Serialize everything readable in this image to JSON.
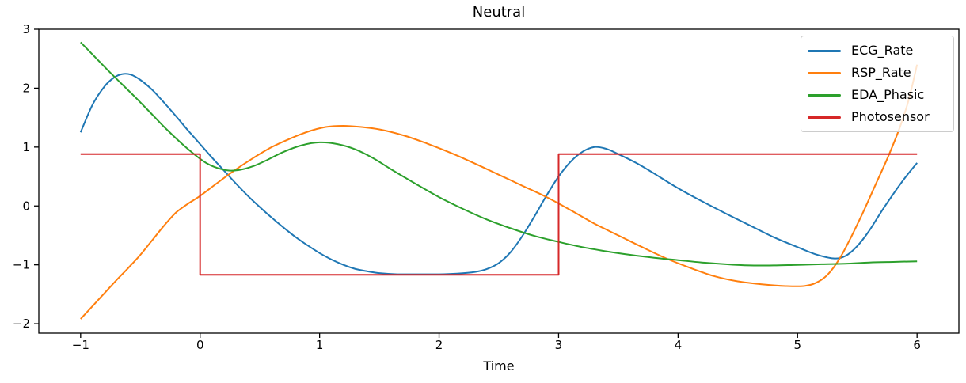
{
  "figure": {
    "title": "Neutral",
    "xlabel": "Time"
  },
  "chart_data": {
    "type": "line",
    "title": "Neutral",
    "xlabel": "Time",
    "ylabel": "",
    "xlim": [
      -1.35,
      6.35
    ],
    "ylim": [
      -2.16,
      3.0
    ],
    "x_ticks": [
      -1,
      0,
      1,
      2,
      3,
      4,
      5,
      6
    ],
    "x_tick_labels": [
      "−1",
      "0",
      "1",
      "2",
      "3",
      "4",
      "5",
      "6"
    ],
    "y_ticks": [
      -2,
      -1,
      0,
      1,
      2,
      3
    ],
    "y_tick_labels": [
      "−2",
      "−1",
      "0",
      "1",
      "2",
      "3"
    ],
    "grid": false,
    "legend_position": "upper right",
    "series": [
      {
        "name": "ECG_Rate",
        "color": "#1f77b4",
        "smooth": true,
        "points": [
          [
            -1.0,
            1.25
          ],
          [
            -0.9,
            1.72
          ],
          [
            -0.8,
            2.03
          ],
          [
            -0.72,
            2.18
          ],
          [
            -0.65,
            2.24
          ],
          [
            -0.58,
            2.23
          ],
          [
            -0.5,
            2.14
          ],
          [
            -0.4,
            1.97
          ],
          [
            -0.3,
            1.75
          ],
          [
            -0.2,
            1.52
          ],
          [
            -0.1,
            1.28
          ],
          [
            0.0,
            1.05
          ],
          [
            0.1,
            0.82
          ],
          [
            0.2,
            0.6
          ],
          [
            0.3,
            0.38
          ],
          [
            0.4,
            0.17
          ],
          [
            0.5,
            -0.02
          ],
          [
            0.6,
            -0.2
          ],
          [
            0.7,
            -0.37
          ],
          [
            0.8,
            -0.53
          ],
          [
            0.9,
            -0.67
          ],
          [
            1.0,
            -0.8
          ],
          [
            1.1,
            -0.91
          ],
          [
            1.2,
            -1.0
          ],
          [
            1.3,
            -1.07
          ],
          [
            1.4,
            -1.11
          ],
          [
            1.5,
            -1.14
          ],
          [
            1.65,
            -1.16
          ],
          [
            1.8,
            -1.16
          ],
          [
            2.0,
            -1.16
          ],
          [
            2.15,
            -1.15
          ],
          [
            2.3,
            -1.12
          ],
          [
            2.4,
            -1.07
          ],
          [
            2.5,
            -0.97
          ],
          [
            2.6,
            -0.78
          ],
          [
            2.7,
            -0.5
          ],
          [
            2.8,
            -0.17
          ],
          [
            2.9,
            0.18
          ],
          [
            3.0,
            0.5
          ],
          [
            3.1,
            0.75
          ],
          [
            3.2,
            0.92
          ],
          [
            3.3,
            1.0
          ],
          [
            3.4,
            0.97
          ],
          [
            3.5,
            0.88
          ],
          [
            3.65,
            0.73
          ],
          [
            3.8,
            0.55
          ],
          [
            4.0,
            0.3
          ],
          [
            4.2,
            0.08
          ],
          [
            4.4,
            -0.13
          ],
          [
            4.6,
            -0.33
          ],
          [
            4.8,
            -0.53
          ],
          [
            5.0,
            -0.7
          ],
          [
            5.15,
            -0.82
          ],
          [
            5.3,
            -0.89
          ],
          [
            5.4,
            -0.85
          ],
          [
            5.5,
            -0.68
          ],
          [
            5.6,
            -0.42
          ],
          [
            5.7,
            -0.1
          ],
          [
            5.8,
            0.2
          ],
          [
            5.9,
            0.48
          ],
          [
            6.0,
            0.73
          ]
        ]
      },
      {
        "name": "RSP_Rate",
        "color": "#ff7f0e",
        "smooth": true,
        "points": [
          [
            -1.0,
            -1.92
          ],
          [
            -0.9,
            -1.7
          ],
          [
            -0.8,
            -1.48
          ],
          [
            -0.7,
            -1.26
          ],
          [
            -0.6,
            -1.05
          ],
          [
            -0.5,
            -0.83
          ],
          [
            -0.4,
            -0.58
          ],
          [
            -0.3,
            -0.33
          ],
          [
            -0.2,
            -0.11
          ],
          [
            -0.1,
            0.04
          ],
          [
            0.0,
            0.17
          ],
          [
            0.15,
            0.4
          ],
          [
            0.3,
            0.62
          ],
          [
            0.45,
            0.82
          ],
          [
            0.6,
            1.0
          ],
          [
            0.75,
            1.14
          ],
          [
            0.9,
            1.26
          ],
          [
            1.05,
            1.34
          ],
          [
            1.2,
            1.36
          ],
          [
            1.35,
            1.34
          ],
          [
            1.5,
            1.3
          ],
          [
            1.7,
            1.2
          ],
          [
            1.9,
            1.06
          ],
          [
            2.1,
            0.9
          ],
          [
            2.3,
            0.72
          ],
          [
            2.5,
            0.53
          ],
          [
            2.7,
            0.34
          ],
          [
            2.9,
            0.15
          ],
          [
            3.1,
            -0.07
          ],
          [
            3.3,
            -0.3
          ],
          [
            3.5,
            -0.5
          ],
          [
            3.7,
            -0.7
          ],
          [
            3.9,
            -0.89
          ],
          [
            4.1,
            -1.05
          ],
          [
            4.3,
            -1.19
          ],
          [
            4.5,
            -1.28
          ],
          [
            4.7,
            -1.33
          ],
          [
            4.9,
            -1.36
          ],
          [
            5.05,
            -1.36
          ],
          [
            5.15,
            -1.31
          ],
          [
            5.25,
            -1.17
          ],
          [
            5.35,
            -0.9
          ],
          [
            5.45,
            -0.52
          ],
          [
            5.55,
            -0.1
          ],
          [
            5.65,
            0.35
          ],
          [
            5.75,
            0.8
          ],
          [
            5.85,
            1.3
          ],
          [
            5.93,
            1.8
          ],
          [
            6.0,
            2.4
          ]
        ]
      },
      {
        "name": "EDA_Phasic",
        "color": "#2ca02c",
        "smooth": true,
        "points": [
          [
            -1.0,
            2.78
          ],
          [
            -0.88,
            2.53
          ],
          [
            -0.76,
            2.28
          ],
          [
            -0.64,
            2.04
          ],
          [
            -0.52,
            1.8
          ],
          [
            -0.4,
            1.55
          ],
          [
            -0.28,
            1.3
          ],
          [
            -0.16,
            1.07
          ],
          [
            -0.05,
            0.88
          ],
          [
            0.05,
            0.73
          ],
          [
            0.15,
            0.64
          ],
          [
            0.25,
            0.6
          ],
          [
            0.35,
            0.62
          ],
          [
            0.45,
            0.68
          ],
          [
            0.55,
            0.77
          ],
          [
            0.7,
            0.92
          ],
          [
            0.85,
            1.03
          ],
          [
            1.0,
            1.08
          ],
          [
            1.15,
            1.05
          ],
          [
            1.3,
            0.96
          ],
          [
            1.45,
            0.81
          ],
          [
            1.6,
            0.62
          ],
          [
            1.8,
            0.38
          ],
          [
            2.0,
            0.15
          ],
          [
            2.2,
            -0.05
          ],
          [
            2.4,
            -0.23
          ],
          [
            2.6,
            -0.38
          ],
          [
            2.8,
            -0.51
          ],
          [
            3.0,
            -0.61
          ],
          [
            3.2,
            -0.7
          ],
          [
            3.4,
            -0.77
          ],
          [
            3.6,
            -0.83
          ],
          [
            3.8,
            -0.88
          ],
          [
            4.0,
            -0.92
          ],
          [
            4.2,
            -0.96
          ],
          [
            4.4,
            -0.99
          ],
          [
            4.6,
            -1.01
          ],
          [
            4.8,
            -1.01
          ],
          [
            5.0,
            -1.0
          ],
          [
            5.2,
            -0.99
          ],
          [
            5.4,
            -0.98
          ],
          [
            5.6,
            -0.96
          ],
          [
            5.8,
            -0.95
          ],
          [
            6.0,
            -0.94
          ]
        ]
      },
      {
        "name": "Photosensor",
        "color": "#d62728",
        "smooth": false,
        "points": [
          [
            -1.0,
            0.88
          ],
          [
            0.0,
            0.88
          ],
          [
            0.0,
            -1.17
          ],
          [
            3.0,
            -1.17
          ],
          [
            3.0,
            0.88
          ],
          [
            6.0,
            0.88
          ]
        ]
      }
    ]
  }
}
